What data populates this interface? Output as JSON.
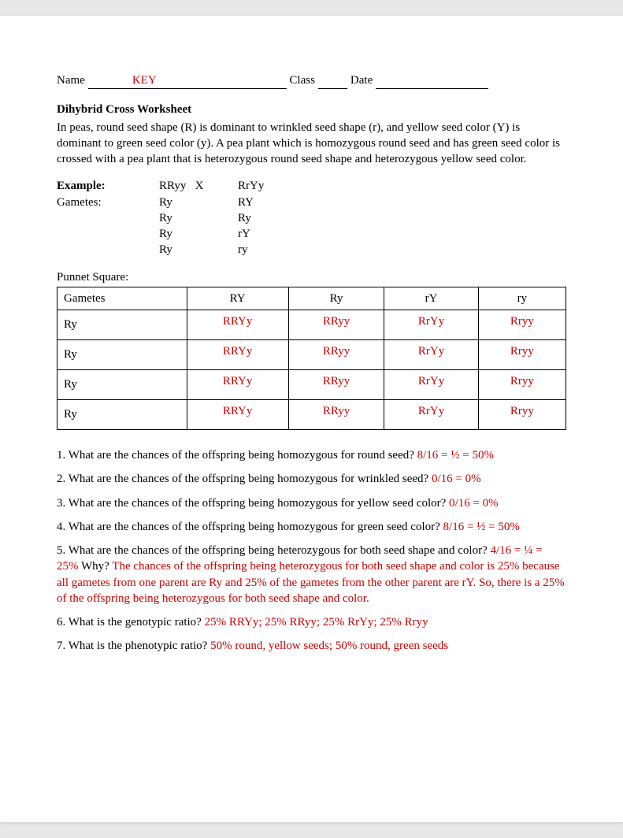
{
  "header": {
    "name_label": "Name ",
    "name_underline_pre": "               ",
    "key": "KEY",
    "name_underline_post": "                                            ",
    "class_label": " Class ",
    "class_underline": "          ",
    "date_label": " Date ",
    "date_underline": "                                      "
  },
  "title": "Dihybrid Cross Worksheet",
  "intro": "In peas, round seed shape (R) is dominant to wrinkled seed shape (r), and yellow seed color (Y) is dominant to green seed color (y). A pea plant which is homozygous round seed and has green seed color is crossed with a pea plant that is heterozygous round seed shape and heterozygous yellow seed color.",
  "example": {
    "label_example": "Example:",
    "label_gametes": "Gametes:",
    "cross_parent1": "RRyy   X",
    "cross_parent2": "RrYy",
    "gametes1": [
      "Ry",
      "Ry",
      "Ry",
      "Ry"
    ],
    "gametes2": [
      "RY",
      "Ry",
      "rY",
      "ry"
    ]
  },
  "punnet": {
    "label": "Punnet Square:",
    "corner": "Gametes",
    "col_headers": [
      "RY",
      "Ry",
      "rY",
      "ry"
    ],
    "row_headers": [
      "Ry",
      "Ry",
      "Ry",
      "Ry"
    ],
    "cells": [
      [
        "RRYy",
        "RRyy",
        "RrYy",
        "Rryy"
      ],
      [
        "RRYy",
        "RRyy",
        "RrYy",
        "Rryy"
      ],
      [
        "RRYy",
        "RRyy",
        "RrYy",
        "Rryy"
      ],
      [
        "RRYy",
        "RRyy",
        "RrYy",
        "Rryy"
      ]
    ]
  },
  "questions": {
    "q1": "1. What are the chances of the offspring being homozygous for round seed? ",
    "a1": "8/16 = ½ = 50%",
    "q2": "2. What are the chances of the offspring being homozygous for wrinkled seed? ",
    "a2": "0/16 = 0%",
    "q3": "3. What are the chances of the offspring being homozygous for yellow seed color? ",
    "a3": "0/16 = 0%",
    "q4": "4. What are the chances of the offspring being homozygous for green seed color? ",
    "a4": "8/16 = ½ = 50%",
    "q5a": "5. What are the chances of the offspring being heterozygous for both seed shape and color? ",
    "a5a": "4/16 = ¼ = 25%",
    "q5b": "            Why? ",
    "a5b": "The chances of the offspring being heterozygous for both seed shape and color is 25% because all gametes from one parent are Ry and 25% of the gametes from the other parent are rY.  So, there is a 25% of the offspring being heterozygous for both seed shape and color.",
    "q6": "6. What is the genotypic ratio? ",
    "a6": "25% RRYy; 25% RRyy; 25% RrYy; 25% Rryy",
    "q7": "7. What is the phenotypic ratio? ",
    "a7": "50% round, yellow seeds; 50% round, green seeds"
  },
  "colors": {
    "answer_color": "#cc0000",
    "text_color": "#000000",
    "page_bg": "#ffffff",
    "body_bg": "#e8e8e8"
  }
}
